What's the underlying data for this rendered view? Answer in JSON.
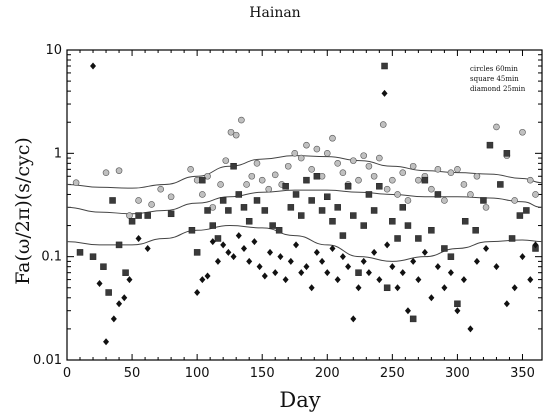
{
  "chart_data": {
    "type": "scatter",
    "title": "Hainan",
    "xlabel": "Day",
    "ylabel": "Fa(ω/2π)(s/cyc)",
    "xlim": [
      0,
      365
    ],
    "ylim": [
      0.01,
      10
    ],
    "yscale": "log",
    "grid": false,
    "x_ticks": [
      0,
      50,
      100,
      150,
      200,
      250,
      300,
      350
    ],
    "y_ticks": [
      0.01,
      0.1,
      1,
      10
    ],
    "y_tick_labels": [
      "0.01",
      "0.1",
      "1",
      "10"
    ],
    "legend": [
      "circles  60min",
      "square  45min",
      "diamond 25min"
    ],
    "legend_position": "top-right",
    "series": [
      {
        "marker": "circle",
        "color": "#c0c0c0",
        "points": [
          [
            7,
            0.52
          ],
          [
            30,
            0.65
          ],
          [
            40,
            0.68
          ],
          [
            48,
            0.25
          ],
          [
            55,
            0.35
          ],
          [
            65,
            0.32
          ],
          [
            72,
            0.45
          ],
          [
            80,
            0.38
          ],
          [
            95,
            0.7
          ],
          [
            100,
            0.55
          ],
          [
            104,
            0.4
          ],
          [
            108,
            0.6
          ],
          [
            112,
            0.3
          ],
          [
            118,
            0.5
          ],
          [
            122,
            0.85
          ],
          [
            126,
            1.6
          ],
          [
            130,
            1.5
          ],
          [
            134,
            2.1
          ],
          [
            138,
            0.5
          ],
          [
            142,
            0.6
          ],
          [
            146,
            0.8
          ],
          [
            150,
            0.55
          ],
          [
            155,
            0.45
          ],
          [
            160,
            0.62
          ],
          [
            165,
            0.5
          ],
          [
            170,
            0.75
          ],
          [
            175,
            1.0
          ],
          [
            180,
            0.9
          ],
          [
            184,
            1.2
          ],
          [
            188,
            0.7
          ],
          [
            192,
            1.1
          ],
          [
            196,
            0.6
          ],
          [
            200,
            1.0
          ],
          [
            204,
            1.4
          ],
          [
            208,
            0.8
          ],
          [
            212,
            0.65
          ],
          [
            216,
            0.5
          ],
          [
            220,
            0.85
          ],
          [
            224,
            0.55
          ],
          [
            228,
            0.95
          ],
          [
            232,
            0.75
          ],
          [
            236,
            0.6
          ],
          [
            240,
            0.9
          ],
          [
            243,
            1.9
          ],
          [
            246,
            0.45
          ],
          [
            250,
            0.55
          ],
          [
            254,
            0.4
          ],
          [
            258,
            0.65
          ],
          [
            262,
            0.35
          ],
          [
            266,
            0.75
          ],
          [
            270,
            0.55
          ],
          [
            275,
            0.6
          ],
          [
            280,
            0.45
          ],
          [
            285,
            0.7
          ],
          [
            290,
            0.35
          ],
          [
            295,
            0.65
          ],
          [
            300,
            0.7
          ],
          [
            305,
            0.5
          ],
          [
            310,
            0.4
          ],
          [
            315,
            0.6
          ],
          [
            322,
            0.3
          ],
          [
            330,
            1.8
          ],
          [
            338,
            0.95
          ],
          [
            344,
            0.35
          ],
          [
            350,
            1.6
          ],
          [
            356,
            0.55
          ],
          [
            360,
            0.4
          ]
        ]
      },
      {
        "marker": "square",
        "color": "#3a3a3a",
        "points": [
          [
            10,
            0.11
          ],
          [
            20,
            0.1
          ],
          [
            28,
            0.08
          ],
          [
            32,
            0.045
          ],
          [
            35,
            0.35
          ],
          [
            40,
            0.13
          ],
          [
            45,
            0.07
          ],
          [
            50,
            0.22
          ],
          [
            55,
            0.25
          ],
          [
            62,
            0.25
          ],
          [
            80,
            0.26
          ],
          [
            96,
            0.18
          ],
          [
            100,
            0.11
          ],
          [
            104,
            0.55
          ],
          [
            108,
            0.28
          ],
          [
            112,
            0.2
          ],
          [
            116,
            0.15
          ],
          [
            120,
            0.35
          ],
          [
            124,
            0.28
          ],
          [
            128,
            0.75
          ],
          [
            132,
            0.4
          ],
          [
            136,
            0.3
          ],
          [
            140,
            0.22
          ],
          [
            146,
            0.35
          ],
          [
            152,
            0.28
          ],
          [
            158,
            0.2
          ],
          [
            163,
            0.18
          ],
          [
            168,
            0.48
          ],
          [
            172,
            0.3
          ],
          [
            176,
            0.4
          ],
          [
            180,
            0.25
          ],
          [
            184,
            0.55
          ],
          [
            188,
            0.35
          ],
          [
            192,
            0.6
          ],
          [
            196,
            0.28
          ],
          [
            200,
            0.38
          ],
          [
            204,
            0.22
          ],
          [
            208,
            0.3
          ],
          [
            212,
            0.16
          ],
          [
            216,
            0.48
          ],
          [
            220,
            0.25
          ],
          [
            224,
            0.07
          ],
          [
            228,
            0.2
          ],
          [
            232,
            0.4
          ],
          [
            236,
            0.28
          ],
          [
            240,
            0.48
          ],
          [
            244,
            7.0
          ],
          [
            246,
            0.05
          ],
          [
            250,
            0.22
          ],
          [
            254,
            0.15
          ],
          [
            258,
            0.3
          ],
          [
            262,
            0.2
          ],
          [
            266,
            0.025
          ],
          [
            270,
            0.15
          ],
          [
            275,
            0.55
          ],
          [
            280,
            0.18
          ],
          [
            285,
            0.4
          ],
          [
            290,
            0.12
          ],
          [
            295,
            0.1
          ],
          [
            300,
            0.035
          ],
          [
            306,
            0.22
          ],
          [
            314,
            0.18
          ],
          [
            320,
            0.35
          ],
          [
            325,
            1.2
          ],
          [
            333,
            0.5
          ],
          [
            338,
            1.0
          ],
          [
            342,
            0.15
          ],
          [
            348,
            0.25
          ],
          [
            353,
            0.28
          ],
          [
            360,
            0.12
          ]
        ]
      },
      {
        "marker": "diamond",
        "color": "#111111",
        "points": [
          [
            20,
            7.0
          ],
          [
            25,
            0.055
          ],
          [
            30,
            0.015
          ],
          [
            36,
            0.025
          ],
          [
            40,
            0.035
          ],
          [
            44,
            0.04
          ],
          [
            48,
            0.06
          ],
          [
            55,
            0.15
          ],
          [
            62,
            0.12
          ],
          [
            100,
            0.045
          ],
          [
            104,
            0.06
          ],
          [
            108,
            0.065
          ],
          [
            112,
            0.14
          ],
          [
            116,
            0.09
          ],
          [
            120,
            0.13
          ],
          [
            124,
            0.11
          ],
          [
            128,
            0.1
          ],
          [
            132,
            0.16
          ],
          [
            136,
            0.12
          ],
          [
            140,
            0.09
          ],
          [
            144,
            0.14
          ],
          [
            148,
            0.08
          ],
          [
            152,
            0.065
          ],
          [
            156,
            0.11
          ],
          [
            160,
            0.07
          ],
          [
            164,
            0.1
          ],
          [
            168,
            0.06
          ],
          [
            172,
            0.09
          ],
          [
            176,
            0.13
          ],
          [
            180,
            0.07
          ],
          [
            184,
            0.08
          ],
          [
            188,
            0.05
          ],
          [
            192,
            0.11
          ],
          [
            196,
            0.09
          ],
          [
            200,
            0.07
          ],
          [
            204,
            0.12
          ],
          [
            208,
            0.06
          ],
          [
            212,
            0.1
          ],
          [
            216,
            0.08
          ],
          [
            220,
            0.025
          ],
          [
            224,
            0.05
          ],
          [
            228,
            0.09
          ],
          [
            232,
            0.07
          ],
          [
            236,
            0.11
          ],
          [
            240,
            0.06
          ],
          [
            244,
            3.8
          ],
          [
            246,
            0.13
          ],
          [
            250,
            0.08
          ],
          [
            254,
            0.05
          ],
          [
            258,
            0.07
          ],
          [
            262,
            0.03
          ],
          [
            266,
            0.09
          ],
          [
            270,
            0.06
          ],
          [
            275,
            0.11
          ],
          [
            280,
            0.04
          ],
          [
            285,
            0.08
          ],
          [
            290,
            0.05
          ],
          [
            295,
            0.07
          ],
          [
            300,
            0.03
          ],
          [
            305,
            0.06
          ],
          [
            310,
            0.02
          ],
          [
            315,
            0.09
          ],
          [
            322,
            0.12
          ],
          [
            330,
            0.08
          ],
          [
            338,
            0.035
          ],
          [
            344,
            0.05
          ],
          [
            350,
            0.1
          ],
          [
            356,
            0.06
          ],
          [
            360,
            0.13
          ]
        ]
      },
      {
        "marker": "line",
        "name": "upper envelope",
        "points": [
          [
            0,
            0.5
          ],
          [
            25,
            0.47
          ],
          [
            50,
            0.46
          ],
          [
            75,
            0.5
          ],
          [
            100,
            0.6
          ],
          [
            125,
            0.75
          ],
          [
            150,
            0.88
          ],
          [
            175,
            0.95
          ],
          [
            200,
            0.93
          ],
          [
            225,
            0.85
          ],
          [
            250,
            0.75
          ],
          [
            275,
            0.68
          ],
          [
            300,
            0.65
          ],
          [
            325,
            0.63
          ],
          [
            350,
            0.57
          ],
          [
            365,
            0.52
          ]
        ]
      },
      {
        "marker": "line",
        "name": "middle envelope",
        "points": [
          [
            0,
            0.3
          ],
          [
            25,
            0.27
          ],
          [
            50,
            0.26
          ],
          [
            75,
            0.28
          ],
          [
            100,
            0.33
          ],
          [
            125,
            0.38
          ],
          [
            150,
            0.42
          ],
          [
            175,
            0.44
          ],
          [
            200,
            0.44
          ],
          [
            225,
            0.42
          ],
          [
            250,
            0.4
          ],
          [
            275,
            0.38
          ],
          [
            300,
            0.38
          ],
          [
            325,
            0.37
          ],
          [
            350,
            0.34
          ],
          [
            365,
            0.3
          ]
        ]
      },
      {
        "marker": "line",
        "name": "lower envelope",
        "points": [
          [
            0,
            0.14
          ],
          [
            25,
            0.13
          ],
          [
            50,
            0.13
          ],
          [
            75,
            0.15
          ],
          [
            100,
            0.18
          ],
          [
            125,
            0.2
          ],
          [
            150,
            0.19
          ],
          [
            175,
            0.16
          ],
          [
            200,
            0.13
          ],
          [
            225,
            0.1
          ],
          [
            250,
            0.09
          ],
          [
            275,
            0.1
          ],
          [
            300,
            0.12
          ],
          [
            325,
            0.14
          ],
          [
            350,
            0.145
          ],
          [
            365,
            0.14
          ]
        ]
      }
    ]
  }
}
